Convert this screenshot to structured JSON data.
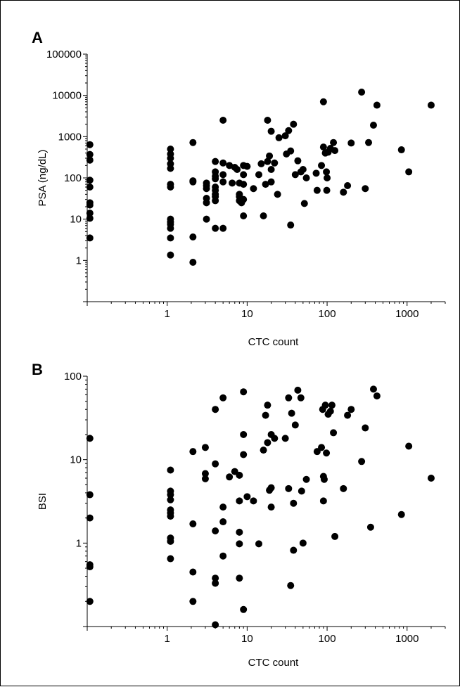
{
  "chart_data": [
    {
      "type": "scatter",
      "panel": "A",
      "xlabel": "CTC count",
      "ylabel": "PSA (ng/dL)",
      "x_scale": "log",
      "y_scale": "log",
      "xlim": [
        0.1,
        3000
      ],
      "ylim": [
        0.1,
        100000
      ],
      "x_ticks": [
        1,
        10,
        100,
        1000
      ],
      "x_tick_labels": [
        "1",
        "10",
        "100",
        "1000"
      ],
      "y_ticks": [
        1,
        10,
        100,
        1000,
        10000,
        100000
      ],
      "y_tick_labels": [
        "1",
        "10",
        "100",
        "1000",
        "10000",
        "100000"
      ],
      "grid": false,
      "points": [
        [
          0.108,
          640
        ],
        [
          0.108,
          370
        ],
        [
          0.108,
          270
        ],
        [
          0.108,
          88
        ],
        [
          0.108,
          60
        ],
        [
          0.108,
          25
        ],
        [
          0.108,
          22
        ],
        [
          0.108,
          14
        ],
        [
          0.108,
          10.5
        ],
        [
          0.108,
          3.5
        ],
        [
          1.1,
          500
        ],
        [
          1.1,
          380
        ],
        [
          1.1,
          300
        ],
        [
          1.1,
          220
        ],
        [
          1.1,
          170
        ],
        [
          1.1,
          70
        ],
        [
          1.1,
          60
        ],
        [
          1.1,
          10
        ],
        [
          1.1,
          8.5
        ],
        [
          1.1,
          7.5
        ],
        [
          1.1,
          6
        ],
        [
          1.1,
          3.5
        ],
        [
          1.1,
          1.35
        ],
        [
          2.1,
          720
        ],
        [
          2.1,
          85
        ],
        [
          2.1,
          80
        ],
        [
          2.1,
          3.7
        ],
        [
          2.1,
          0.9
        ],
        [
          3.1,
          75
        ],
        [
          3.1,
          65
        ],
        [
          3.1,
          55
        ],
        [
          3.1,
          32
        ],
        [
          3.1,
          25
        ],
        [
          3.1,
          10
        ],
        [
          4.0,
          250
        ],
        [
          4.0,
          140
        ],
        [
          4.0,
          110
        ],
        [
          4.0,
          95
        ],
        [
          4.0,
          60
        ],
        [
          4.0,
          50
        ],
        [
          4.0,
          40
        ],
        [
          4.0,
          35
        ],
        [
          4.0,
          28
        ],
        [
          4.0,
          6
        ],
        [
          5.0,
          2500
        ],
        [
          5.0,
          230
        ],
        [
          5.0,
          120
        ],
        [
          5.0,
          80
        ],
        [
          5.0,
          6
        ],
        [
          6.0,
          200
        ],
        [
          6.5,
          75
        ],
        [
          7.0,
          180
        ],
        [
          7.5,
          160
        ],
        [
          8.0,
          75
        ],
        [
          8.0,
          40
        ],
        [
          8.0,
          35
        ],
        [
          8.0,
          28
        ],
        [
          8.5,
          25
        ],
        [
          9.0,
          200
        ],
        [
          9.0,
          120
        ],
        [
          9.0,
          70
        ],
        [
          9.0,
          30
        ],
        [
          9.0,
          12
        ],
        [
          10.0,
          190
        ],
        [
          12.0,
          55
        ],
        [
          14.0,
          120
        ],
        [
          15.0,
          220
        ],
        [
          16.0,
          12
        ],
        [
          17.0,
          70
        ],
        [
          18.0,
          2500
        ],
        [
          18.0,
          250
        ],
        [
          19.0,
          340
        ],
        [
          20.0,
          1350
        ],
        [
          20.0,
          160
        ],
        [
          20.0,
          80
        ],
        [
          22.0,
          230
        ],
        [
          24.0,
          40
        ],
        [
          25.0,
          940
        ],
        [
          30.0,
          1050
        ],
        [
          31.0,
          380
        ],
        [
          33.0,
          1400
        ],
        [
          35.0,
          450
        ],
        [
          35.0,
          7.2
        ],
        [
          38.0,
          2000
        ],
        [
          40.0,
          120
        ],
        [
          43.0,
          260
        ],
        [
          47.0,
          140
        ],
        [
          50.0,
          160
        ],
        [
          52.0,
          24
        ],
        [
          55.0,
          100
        ],
        [
          73.0,
          130
        ],
        [
          75.0,
          50
        ],
        [
          85.0,
          200
        ],
        [
          90.0,
          7000
        ],
        [
          90.0,
          560
        ],
        [
          95.0,
          400
        ],
        [
          98.0,
          140
        ],
        [
          99.0,
          50
        ],
        [
          100.0,
          100
        ],
        [
          103.0,
          420
        ],
        [
          110.0,
          520
        ],
        [
          120.0,
          720
        ],
        [
          125.0,
          460
        ],
        [
          160.0,
          45
        ],
        [
          180.0,
          65
        ],
        [
          200.0,
          700
        ],
        [
          270.0,
          12000
        ],
        [
          300.0,
          55
        ],
        [
          330.0,
          720
        ],
        [
          380.0,
          1900
        ],
        [
          420.0,
          5800
        ],
        [
          850.0,
          480
        ],
        [
          1050.0,
          140
        ],
        [
          2000.0,
          5800
        ]
      ]
    },
    {
      "type": "scatter",
      "panel": "B",
      "xlabel": "CTC count",
      "ylabel": "BSI",
      "x_scale": "log",
      "y_scale": "log",
      "xlim": [
        0.1,
        3000
      ],
      "ylim": [
        0.1,
        100
      ],
      "x_ticks": [
        1,
        10,
        100,
        1000
      ],
      "x_tick_labels": [
        "1",
        "10",
        "100",
        "1000"
      ],
      "y_ticks": [
        1,
        10,
        100
      ],
      "y_tick_labels": [
        "1",
        "10",
        "100"
      ],
      "grid": false,
      "points": [
        [
          0.108,
          18
        ],
        [
          0.108,
          3.8
        ],
        [
          0.108,
          2.0
        ],
        [
          0.108,
          0.55
        ],
        [
          0.108,
          0.52
        ],
        [
          0.108,
          0.2
        ],
        [
          1.1,
          7.5
        ],
        [
          1.1,
          4.2
        ],
        [
          1.1,
          3.8
        ],
        [
          1.1,
          3.3
        ],
        [
          1.1,
          2.5
        ],
        [
          1.1,
          2.3
        ],
        [
          1.1,
          2.1
        ],
        [
          1.1,
          1.15
        ],
        [
          1.1,
          1.05
        ],
        [
          1.1,
          0.65
        ],
        [
          2.1,
          12.5
        ],
        [
          2.1,
          1.7
        ],
        [
          2.1,
          0.45
        ],
        [
          2.1,
          0.2
        ],
        [
          3.0,
          14
        ],
        [
          3.0,
          6.8
        ],
        [
          3.0,
          5.9
        ],
        [
          4.0,
          40
        ],
        [
          4.0,
          8.9
        ],
        [
          4.0,
          1.4
        ],
        [
          4.0,
          0.38
        ],
        [
          4.0,
          0.33
        ],
        [
          4.0,
          0.105
        ],
        [
          5.0,
          55
        ],
        [
          5.0,
          2.7
        ],
        [
          5.0,
          1.8
        ],
        [
          5.0,
          0.7
        ],
        [
          6.0,
          6.2
        ],
        [
          7.0,
          7.2
        ],
        [
          8.0,
          6.5
        ],
        [
          8.0,
          3.2
        ],
        [
          8.0,
          1.35
        ],
        [
          8.0,
          0.98
        ],
        [
          8.0,
          0.38
        ],
        [
          9.0,
          65
        ],
        [
          9.0,
          20
        ],
        [
          9.0,
          11.5
        ],
        [
          9.0,
          0.16
        ],
        [
          10.0,
          3.6
        ],
        [
          12.0,
          3.2
        ],
        [
          14.0,
          0.98
        ],
        [
          16.0,
          13
        ],
        [
          17.0,
          34
        ],
        [
          18.0,
          45
        ],
        [
          18.0,
          16
        ],
        [
          19.0,
          4.3
        ],
        [
          20.0,
          20
        ],
        [
          20.0,
          4.6
        ],
        [
          20.0,
          2.7
        ],
        [
          22.0,
          18
        ],
        [
          30.0,
          18
        ],
        [
          33.0,
          55
        ],
        [
          33.0,
          4.5
        ],
        [
          35.0,
          0.31
        ],
        [
          36.0,
          36
        ],
        [
          38.0,
          0.82
        ],
        [
          38.0,
          3
        ],
        [
          40.0,
          26
        ],
        [
          43.0,
          68
        ],
        [
          47.0,
          55
        ],
        [
          48.0,
          4.2
        ],
        [
          50.0,
          1
        ],
        [
          55.0,
          5.8
        ],
        [
          75.0,
          12.5
        ],
        [
          85.0,
          14
        ],
        [
          88.0,
          40
        ],
        [
          90.0,
          6.3
        ],
        [
          90.0,
          3.2
        ],
        [
          92.0,
          5.8
        ],
        [
          95.0,
          45
        ],
        [
          98.0,
          12
        ],
        [
          103.0,
          35
        ],
        [
          110.0,
          38
        ],
        [
          115.0,
          45
        ],
        [
          120.0,
          21
        ],
        [
          125.0,
          1.2
        ],
        [
          160.0,
          4.5
        ],
        [
          180.0,
          34
        ],
        [
          200.0,
          40
        ],
        [
          270.0,
          9.5
        ],
        [
          300.0,
          24
        ],
        [
          350.0,
          1.55
        ],
        [
          380.0,
          70
        ],
        [
          420.0,
          58
        ],
        [
          850.0,
          2.2
        ],
        [
          1050.0,
          14.5
        ],
        [
          2000.0,
          6
        ]
      ]
    }
  ],
  "panels": [
    "A",
    "B"
  ]
}
